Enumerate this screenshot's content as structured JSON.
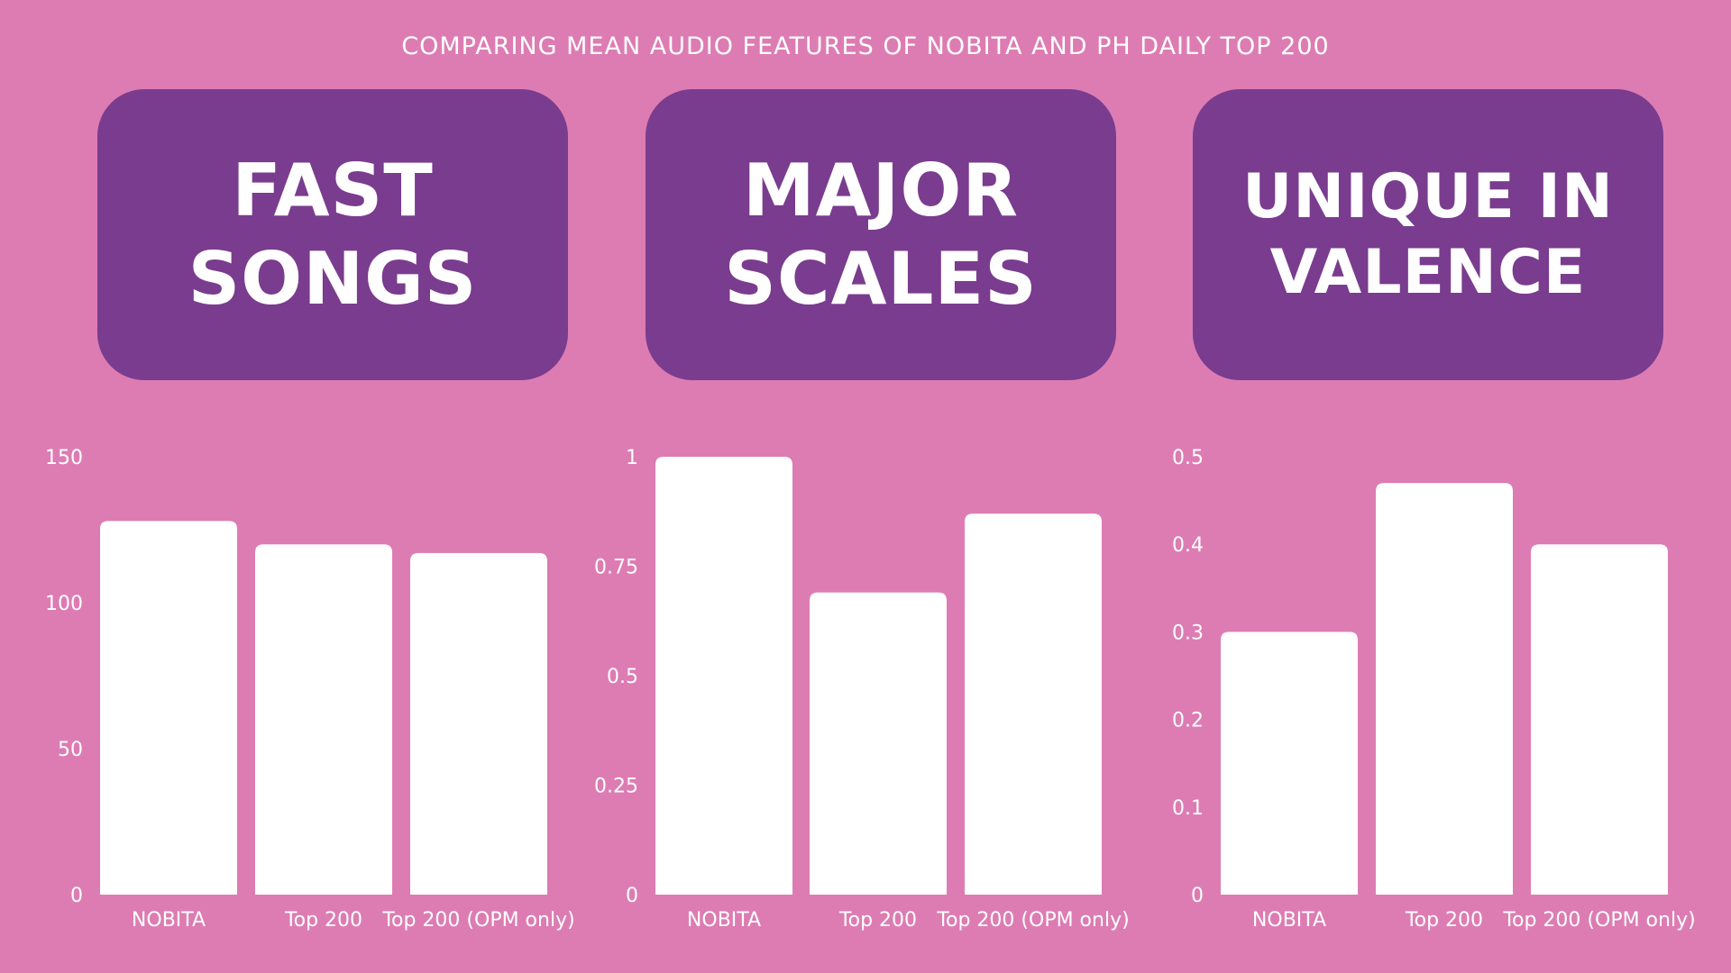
{
  "title": "COMPARING MEAN AUDIO FEATURES OF NOBITA AND PH DAILY TOP 200",
  "cards": [
    {
      "text": "FAST\nSONGS"
    },
    {
      "text": "MAJOR\nSCALES"
    },
    {
      "text": "UNIQUE IN\nVALENCE"
    }
  ],
  "colors": {
    "background": "#dd7cb3",
    "card": "#7a3c8e",
    "bar": "#ffffff",
    "text": "#ffffff"
  },
  "chart_data": [
    {
      "type": "bar",
      "categories": [
        "NOBITA",
        "Top 200",
        "Top 200 (OPM only)"
      ],
      "values": [
        128,
        120,
        117
      ],
      "ylim": [
        0,
        150
      ],
      "yticks": [
        "0",
        "50",
        "100",
        "150"
      ],
      "ytick_values": [
        0,
        50,
        100,
        150
      ]
    },
    {
      "type": "bar",
      "categories": [
        "NOBITA",
        "Top 200",
        "Top 200 (OPM only)"
      ],
      "values": [
        1.0,
        0.69,
        0.87
      ],
      "ylim": [
        0,
        1
      ],
      "yticks": [
        "0",
        "0.25",
        "0.5",
        "0.75",
        "1"
      ],
      "ytick_values": [
        0,
        0.25,
        0.5,
        0.75,
        1
      ]
    },
    {
      "type": "bar",
      "categories": [
        "NOBITA",
        "Top 200",
        "Top 200 (OPM only)"
      ],
      "values": [
        0.3,
        0.47,
        0.4
      ],
      "ylim": [
        0,
        0.5
      ],
      "yticks": [
        "0",
        "0.1",
        "0.2",
        "0.3",
        "0.4",
        "0.5"
      ],
      "ytick_values": [
        0,
        0.1,
        0.2,
        0.3,
        0.4,
        0.5
      ]
    }
  ]
}
